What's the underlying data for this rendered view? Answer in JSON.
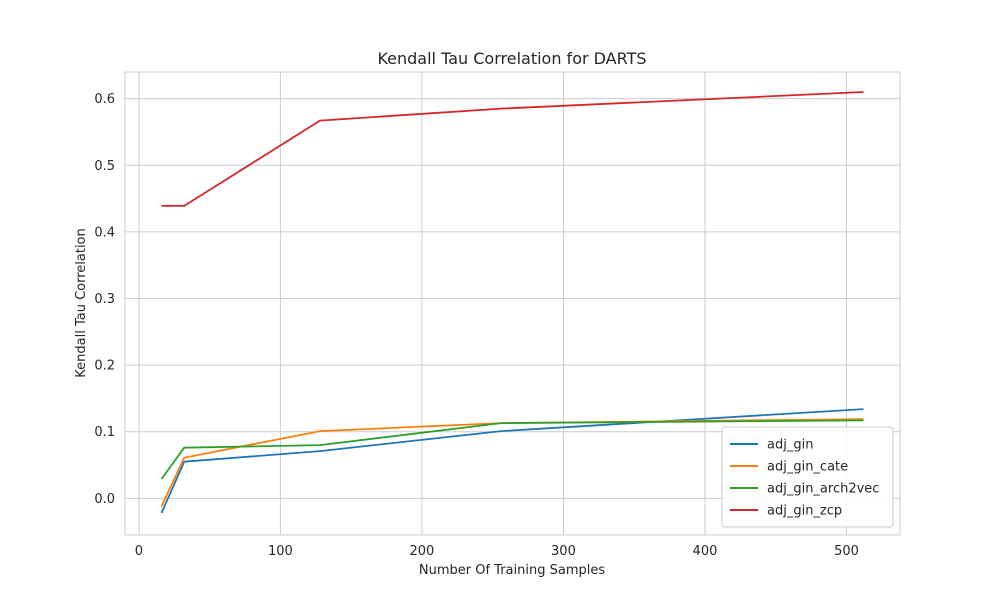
{
  "chart_data": {
    "type": "line",
    "title": "Kendall Tau Correlation for DARTS",
    "xlabel": "Number Of Training Samples",
    "ylabel": "Kendall Tau Correlation",
    "xlim": [
      -9.8,
      537.8
    ],
    "ylim": [
      -0.055,
      0.64
    ],
    "xticks": [
      0,
      100,
      200,
      300,
      400,
      500
    ],
    "yticks": [
      0.0,
      0.1,
      0.2,
      0.3,
      0.4,
      0.5,
      0.6
    ],
    "ytick_labels": [
      "0.0",
      "0.1",
      "0.2",
      "0.3",
      "0.4",
      "0.5",
      "0.6"
    ],
    "grid": true,
    "legend_position": "lower-right",
    "x": [
      16,
      32,
      128,
      256,
      512
    ],
    "series": [
      {
        "name": "adj_gin",
        "color": "#1f77b4",
        "values": [
          -0.022,
          0.055,
          0.071,
          0.101,
          0.134
        ]
      },
      {
        "name": "adj_gin_cate",
        "color": "#ff7f0e",
        "values": [
          -0.012,
          0.061,
          0.101,
          0.113,
          0.119
        ]
      },
      {
        "name": "adj_gin_arch2vec",
        "color": "#2ca02c",
        "values": [
          0.029,
          0.076,
          0.08,
          0.113,
          0.117
        ]
      },
      {
        "name": "adj_gin_zcp",
        "color": "#d62728",
        "values": [
          0.439,
          0.439,
          0.567,
          0.585,
          0.61
        ]
      }
    ]
  }
}
